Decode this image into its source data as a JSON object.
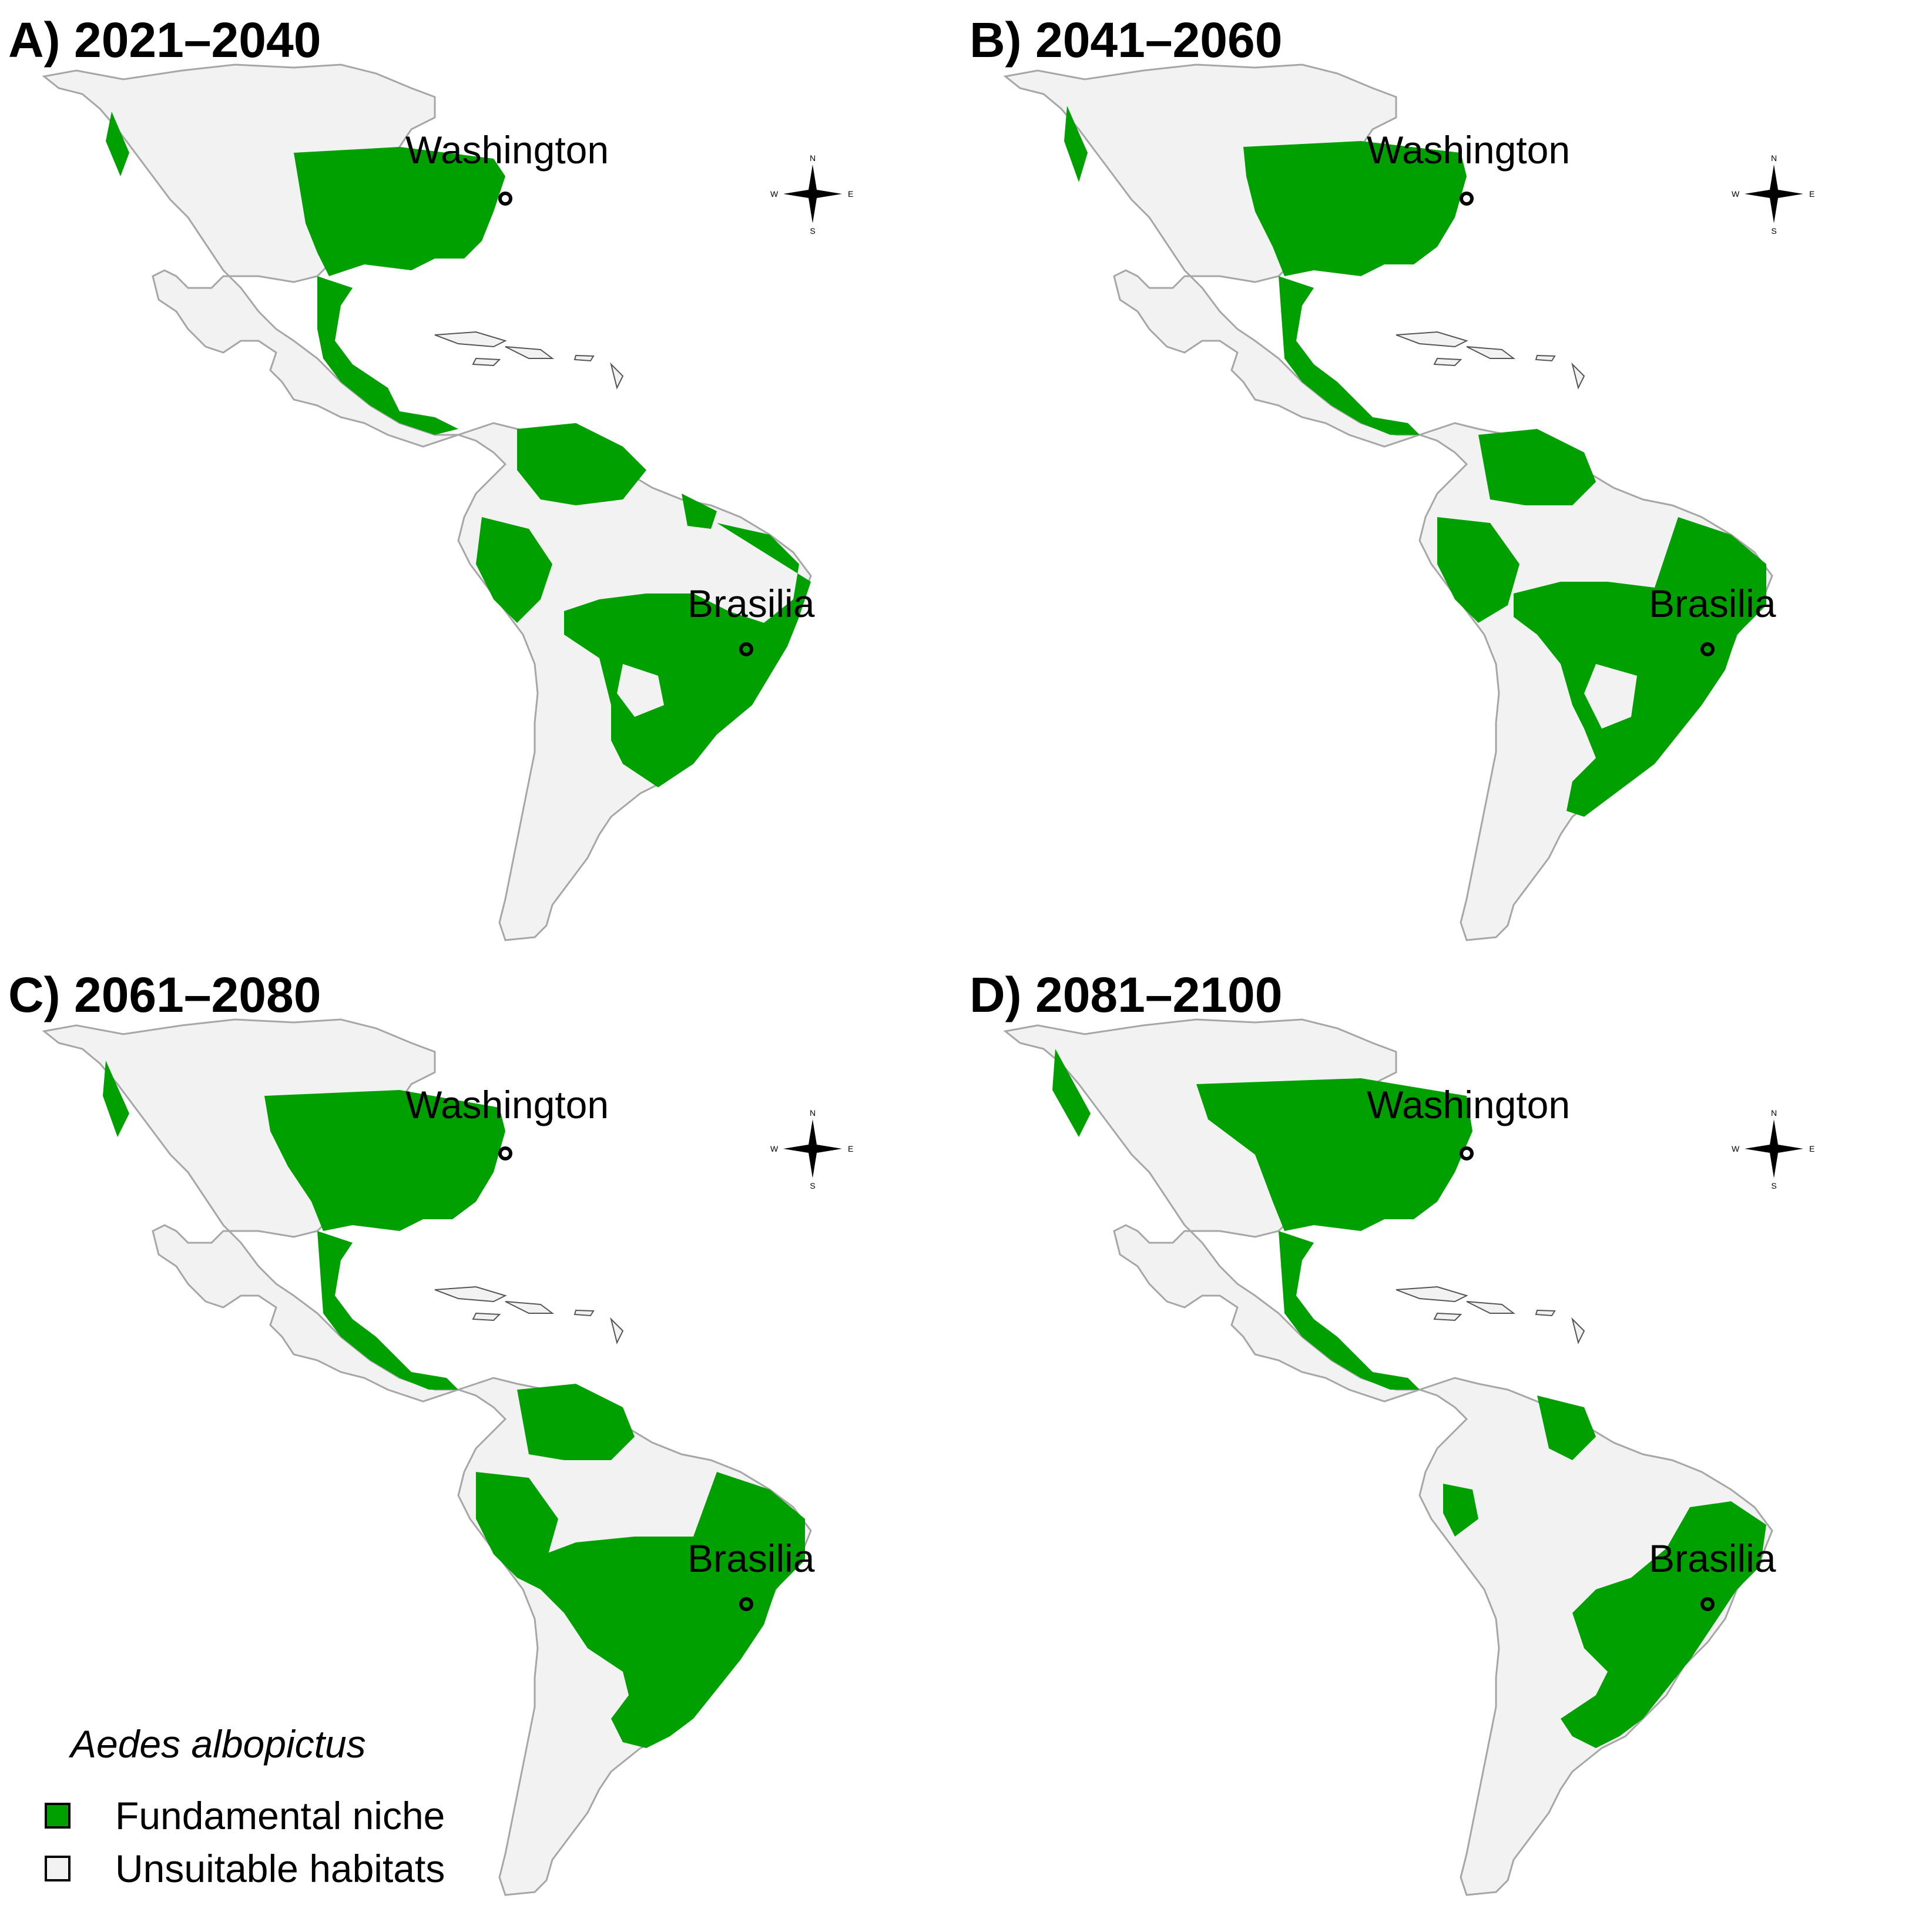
{
  "panels": [
    {
      "title": "A) 2021–2040",
      "cities": [
        {
          "name": "Washington"
        },
        {
          "name": "Brasilia"
        }
      ]
    },
    {
      "title": "B) 2041–2060",
      "cities": [
        {
          "name": "Washington"
        },
        {
          "name": "Brasilia"
        }
      ]
    },
    {
      "title": "C) 2061–2080",
      "cities": [
        {
          "name": "Washington"
        },
        {
          "name": "Brasilia"
        }
      ]
    },
    {
      "title": "D) 2081–2100",
      "cities": [
        {
          "name": "Washington"
        },
        {
          "name": "Brasilia"
        }
      ]
    }
  ],
  "compass": {
    "n": "N",
    "s": "S",
    "e": "E",
    "w": "W"
  },
  "legend": {
    "title": "Aedes albopictus",
    "items": [
      {
        "label": "Fundamental niche",
        "color": "#00a000"
      },
      {
        "label": "Unsuitable habitats",
        "color": "#f2f2f2"
      }
    ]
  },
  "colors": {
    "land": "#f2f2f2",
    "niche": "#00a000",
    "border": "#a6a6a6",
    "ocean": "#ffffff"
  }
}
